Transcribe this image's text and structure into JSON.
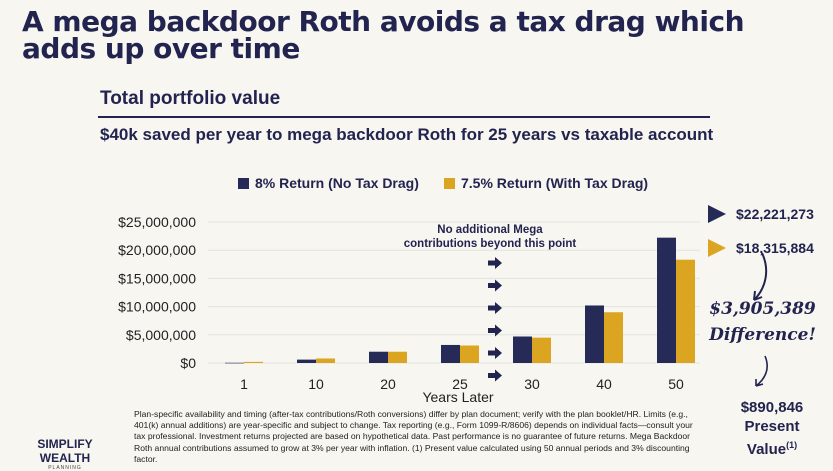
{
  "title_line1": "A mega backdoor Roth avoids a tax drag which",
  "title_line2": "adds up over time",
  "subtitle": "Total portfolio value",
  "description": "$40k saved per year to mega backdoor Roth for 25 years vs taxable account",
  "colors": {
    "navy": "#262a57",
    "gold": "#dba522",
    "grid": "#e4e3de"
  },
  "chart_data": {
    "type": "bar",
    "categories": [
      "1",
      "10",
      "20",
      "25",
      "30",
      "40",
      "50"
    ],
    "series": [
      {
        "name": "8% Return (No Tax Drag)",
        "values": [
          40000,
          600000,
          2000000,
          3200000,
          4700000,
          10200000,
          22221273
        ]
      },
      {
        "name": "7.5% Return (With Tax Drag)",
        "values": [
          200000,
          800000,
          2000000,
          3100000,
          4500000,
          9000000,
          18315884
        ]
      }
    ],
    "xlabel": "Years Later",
    "ylabel": "",
    "ylim": [
      0,
      25000000
    ],
    "yticks": [
      "$0",
      "$5,000,000",
      "$10,000,000",
      "$15,000,000",
      "$20,000,000",
      "$25,000,000"
    ],
    "legend": "top",
    "annotation": "No additional Mega contributions beyond this point",
    "annotation_line1": "No additional Mega",
    "annotation_line2": "contributions beyond this point"
  },
  "callouts": {
    "navy_value": "$22,221,273",
    "gold_value": "$18,315,884",
    "difference": "$3,905,389",
    "difference_label": "Difference!",
    "present_value": "$890,846",
    "present_label": "Present",
    "value_label": "Value",
    "footnote_mark": "(1)"
  },
  "footnote": "Plan-specific availability and timing (after-tax contributions/Roth conversions) differ by plan document; verify with the plan booklet/HR. Limits (e.g., 401(k) annual additions) are year-specific and subject to change. Tax reporting (e.g., Form 1099-R/8606) depends on individual facts—consult your tax professional. Investment returns projected are based on hypothetical data. Past performance is no guarantee of future returns. Mega Backdoor Roth annual contributions assumed to grow at 3% per year with inflation. (1) Present value calculated using 50 annual periods and 3% discounting factor.",
  "logo": {
    "name": "SIMPLIFY WEALTH",
    "tag": "PLANNING"
  }
}
